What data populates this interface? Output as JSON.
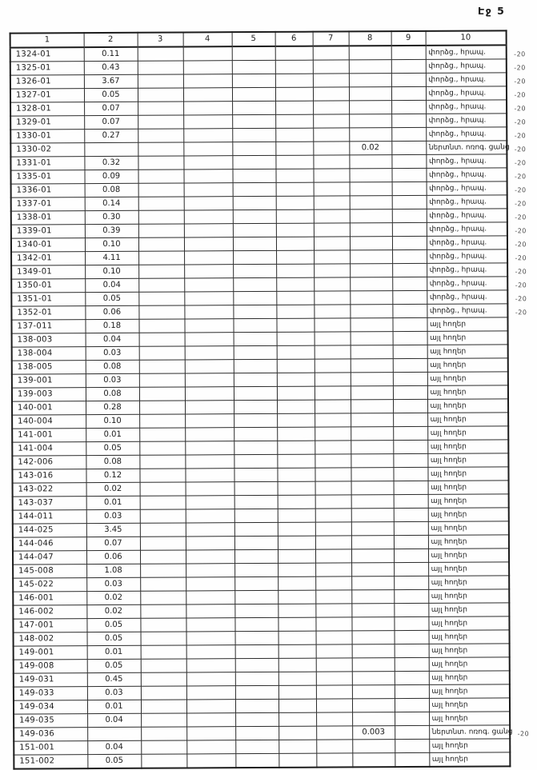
{
  "page": {
    "label": "Էջ 5"
  },
  "table": {
    "headers": [
      "1",
      "2",
      "3",
      "4",
      "5",
      "6",
      "7",
      "8",
      "9",
      "10"
    ],
    "row_fields": [
      "code_col1",
      "area_col2",
      "value_col8",
      "land_use_col10",
      "margin_note"
    ],
    "empty_columns": [
      "3",
      "4",
      "5",
      "6",
      "7",
      "9"
    ],
    "land_use_labels": {
      "experimental": "փորձց., հրապ.",
      "irrigation_network": "ներտնտ. ոռոգ. ցանց",
      "other_lands": "այլ հողեր"
    },
    "rows": [
      [
        "1324-01",
        "0.11",
        "",
        "փորձց., հրապ.",
        "-20"
      ],
      [
        "1325-01",
        "0.43",
        "",
        "փորձց., հրապ.",
        "-20"
      ],
      [
        "1326-01",
        "3.67",
        "",
        "փորձց., հրապ.",
        "-20"
      ],
      [
        "1327-01",
        "0.05",
        "",
        "փորձց., հրապ.",
        "-20"
      ],
      [
        "1328-01",
        "0.07",
        "",
        "փորձց., հրապ.",
        "-20"
      ],
      [
        "1329-01",
        "0.07",
        "",
        "փորձց., հրապ.",
        "-20"
      ],
      [
        "1330-01",
        "0.27",
        "",
        "փորձց., հրապ.",
        "-20"
      ],
      [
        "1330-02",
        "",
        "0.02",
        "ներտնտ. ոռոգ. ցանց",
        "-20"
      ],
      [
        "1331-01",
        "0.32",
        "",
        "փորձց., հրապ.",
        "-20"
      ],
      [
        "1335-01",
        "0.09",
        "",
        "փորձց., հրապ.",
        "-20"
      ],
      [
        "1336-01",
        "0.08",
        "",
        "փորձց., հրապ.",
        "-20"
      ],
      [
        "1337-01",
        "0.14",
        "",
        "փորձց., հրապ.",
        "-20"
      ],
      [
        "1338-01",
        "0.30",
        "",
        "փորձց., հրապ.",
        "-20"
      ],
      [
        "1339-01",
        "0.39",
        "",
        "փորձց., հրապ.",
        "-20"
      ],
      [
        "1340-01",
        "0.10",
        "",
        "փորձց., հրապ.",
        "-20"
      ],
      [
        "1342-01",
        "4.11",
        "",
        "փորձց., հրապ.",
        "-20"
      ],
      [
        "1349-01",
        "0.10",
        "",
        "փորձց., հրապ.",
        "-20"
      ],
      [
        "1350-01",
        "0.04",
        "",
        "փորձց., հրապ.",
        "-20"
      ],
      [
        "1351-01",
        "0.05",
        "",
        "փորձց., հրապ.",
        "-20"
      ],
      [
        "1352-01",
        "0.06",
        "",
        "փորձց., հրապ.",
        "-20"
      ],
      [
        "137-011",
        "0.18",
        "",
        "այլ հողեր",
        ""
      ],
      [
        "138-003",
        "0.04",
        "",
        "այլ հողեր",
        ""
      ],
      [
        "138-004",
        "0.03",
        "",
        "այլ հողեր",
        ""
      ],
      [
        "138-005",
        "0.08",
        "",
        "այլ հողեր",
        ""
      ],
      [
        "139-001",
        "0.03",
        "",
        "այլ հողեր",
        ""
      ],
      [
        "139-003",
        "0.08",
        "",
        "այլ հողեր",
        ""
      ],
      [
        "140-001",
        "0.28",
        "",
        "այլ հողեր",
        ""
      ],
      [
        "140-004",
        "0.10",
        "",
        "այլ հողեր",
        ""
      ],
      [
        "141-001",
        "0.01",
        "",
        "այլ հողեր",
        ""
      ],
      [
        "141-004",
        "0.05",
        "",
        "այլ հողեր",
        ""
      ],
      [
        "142-006",
        "0.08",
        "",
        "այլ հողեր",
        ""
      ],
      [
        "143-016",
        "0.12",
        "",
        "այլ հողեր",
        ""
      ],
      [
        "143-022",
        "0.02",
        "",
        "այլ հողեր",
        ""
      ],
      [
        "143-037",
        "0.01",
        "",
        "այլ հողեր",
        ""
      ],
      [
        "144-011",
        "0.03",
        "",
        "այլ հողեր",
        ""
      ],
      [
        "144-025",
        "3.45",
        "",
        "այլ հողեր",
        ""
      ],
      [
        "144-046",
        "0.07",
        "",
        "այլ հողեր",
        ""
      ],
      [
        "144-047",
        "0.06",
        "",
        "այլ հողեր",
        ""
      ],
      [
        "145-008",
        "1.08",
        "",
        "այլ հողեր",
        ""
      ],
      [
        "145-022",
        "0.03",
        "",
        "այլ հողեր",
        ""
      ],
      [
        "146-001",
        "0.02",
        "",
        "այլ հողեր",
        ""
      ],
      [
        "146-002",
        "0.02",
        "",
        "այլ հողեր",
        ""
      ],
      [
        "147-001",
        "0.05",
        "",
        "այլ հողեր",
        ""
      ],
      [
        "148-002",
        "0.05",
        "",
        "այլ հողեր",
        ""
      ],
      [
        "149-001",
        "0.01",
        "",
        "այլ հողեր",
        ""
      ],
      [
        "149-008",
        "0.05",
        "",
        "այլ հողեր",
        ""
      ],
      [
        "149-031",
        "0.45",
        "",
        "այլ հողեր",
        ""
      ],
      [
        "149-033",
        "0.03",
        "",
        "այլ հողեր",
        ""
      ],
      [
        "149-034",
        "0.01",
        "",
        "այլ հողեր",
        ""
      ],
      [
        "149-035",
        "0.04",
        "",
        "այլ հողեր",
        ""
      ],
      [
        "149-036",
        "",
        "0.003",
        "ներտնտ. ոռոգ. ցանց",
        "-20"
      ],
      [
        "151-001",
        "0.04",
        "",
        "այլ հողեր",
        ""
      ],
      [
        "151-002",
        "0.05",
        "",
        "այլ հողեր",
        ""
      ]
    ]
  }
}
